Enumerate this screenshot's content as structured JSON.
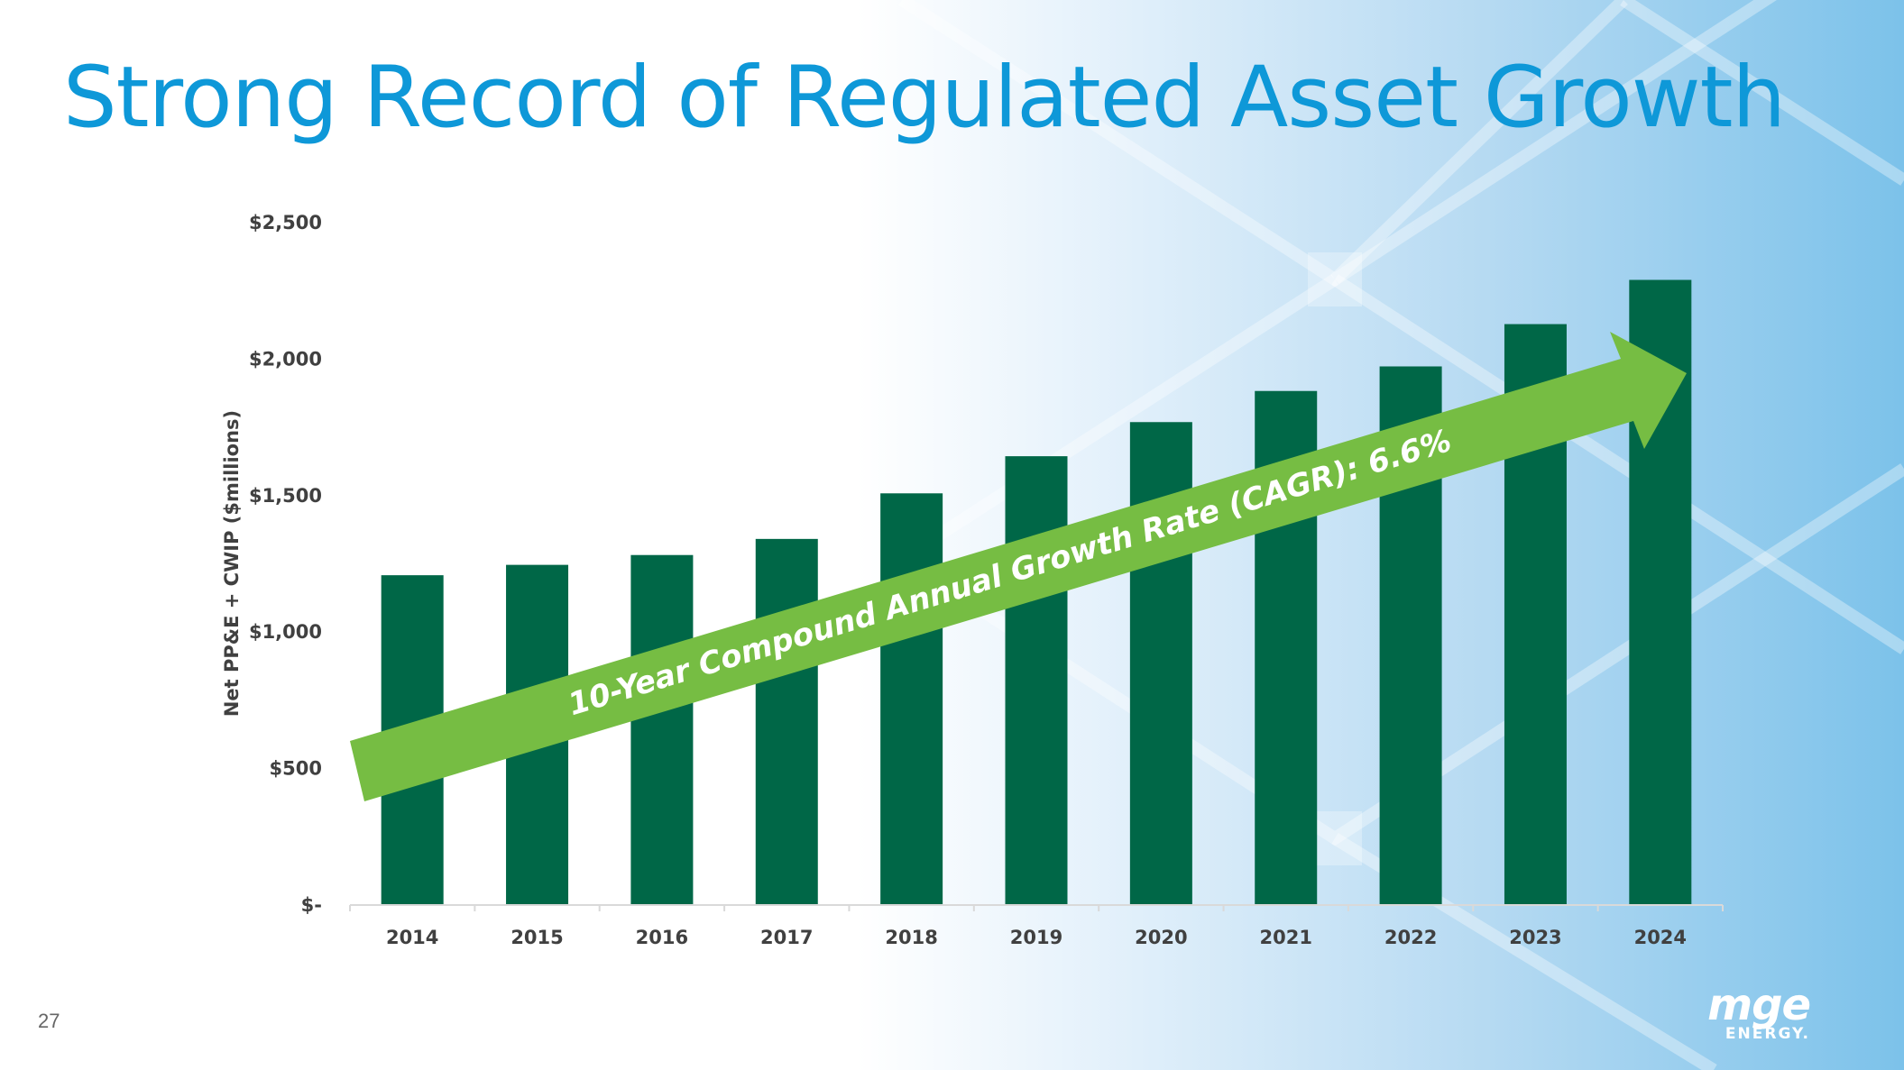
{
  "slide": {
    "title": "Strong Record of Regulated Asset Growth",
    "page_number": "27"
  },
  "logo": {
    "mark": "mge",
    "sub": "ENERGY."
  },
  "colors": {
    "title": "#0e98d8",
    "bar": "#006747",
    "arrow": "#76bd43",
    "arrow_text": "#ffffff",
    "axis_text": "#404040"
  },
  "chart_data": {
    "type": "bar",
    "title": "",
    "xlabel": "",
    "ylabel": "Net PP&E + CWIP ($millions)",
    "categories": [
      "2014",
      "2015",
      "2016",
      "2017",
      "2018",
      "2019",
      "2020",
      "2021",
      "2022",
      "2023",
      "2024"
    ],
    "values": [
      1205,
      1243,
      1279,
      1338,
      1505,
      1641,
      1766,
      1880,
      1970,
      2125,
      2287
    ],
    "ylim": [
      0,
      2500
    ],
    "yticks": [
      0,
      500,
      1000,
      1500,
      2000,
      2500
    ],
    "ytick_labels": [
      "$-",
      "$500",
      "$1,000",
      "$1,500",
      "$2,000",
      "$2,500"
    ],
    "grid": false,
    "legend": "none",
    "annotation": {
      "text": "10-Year Compound Annual Growth Rate (CAGR): 6.6%",
      "style": "arrow"
    }
  }
}
